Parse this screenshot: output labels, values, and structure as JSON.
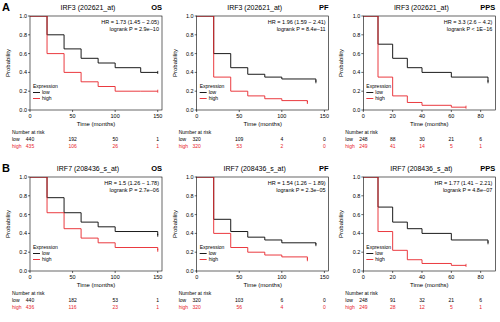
{
  "figure": {
    "panels": [
      "A",
      "B"
    ]
  },
  "chart_data": [
    {
      "type": "line",
      "title": "IRF3 (202621_at)",
      "subtitle": "OS",
      "annotations": [
        "HR = 1.73 (1.45 − 2.05)",
        "logrank P = 2.9e−10"
      ],
      "x_label": "Time (months)",
      "y_label": "Probability",
      "legend_title": "Expression",
      "legend": "bottom-left",
      "line_style": "step",
      "xlim": [
        0,
        155
      ],
      "xticks": [
        0,
        50,
        100,
        150
      ],
      "ylim": [
        0,
        1
      ],
      "yticks": [
        {
          "value": 0,
          "label": "0.0"
        },
        0.2,
        0.4,
        0.6,
        0.8,
        {
          "value": 1,
          "label": "1.0"
        }
      ],
      "series": [
        {
          "name": "low",
          "color": "#000000",
          "x": [
            0,
            20,
            40,
            60,
            80,
            100,
            130,
            150
          ],
          "values": [
            1,
            0.8,
            0.65,
            0.55,
            0.5,
            0.45,
            0.4,
            0.4
          ]
        },
        {
          "name": "high",
          "color": "#e8242a",
          "x": [
            0,
            20,
            40,
            60,
            80,
            100,
            130,
            150
          ],
          "values": [
            1,
            0.6,
            0.4,
            0.3,
            0.25,
            0.2,
            0.2,
            0.2
          ]
        }
      ],
      "risk_table": {
        "title": "Number at risk",
        "rows": [
          {
            "name": "low",
            "values": [
              440,
              192,
              50,
              1
            ]
          },
          {
            "name": "high",
            "values": [
              435,
              106,
              26,
              1
            ]
          }
        ]
      }
    },
    {
      "type": "line",
      "title": "IRF3 (202621_at)",
      "subtitle": "PF",
      "annotations": [
        "HR = 1.96 (1.59 − 2.41)",
        "logrank P = 8.4e−11"
      ],
      "x_label": "Time (months)",
      "y_label": "Probability",
      "legend_title": "Expression",
      "legend": "bottom-left",
      "line_style": "step",
      "xlim": [
        0,
        155
      ],
      "xticks": [
        0,
        50,
        100,
        150
      ],
      "ylim": [
        0,
        1
      ],
      "yticks": [
        {
          "value": 0,
          "label": "0.0"
        },
        0.2,
        0.4,
        0.6,
        0.8,
        {
          "value": 1,
          "label": "1.0"
        }
      ],
      "series": [
        {
          "name": "low",
          "color": "#000000",
          "x": [
            0,
            20,
            40,
            60,
            80,
            100,
            140
          ],
          "values": [
            1,
            0.6,
            0.45,
            0.38,
            0.35,
            0.33,
            0.3
          ]
        },
        {
          "name": "high",
          "color": "#e8242a",
          "x": [
            0,
            20,
            40,
            60,
            80,
            100,
            130
          ],
          "values": [
            1,
            0.35,
            0.2,
            0.15,
            0.12,
            0.1,
            0.08
          ]
        }
      ],
      "risk_table": {
        "title": "Number at risk",
        "rows": [
          {
            "name": "low",
            "values": [
              320,
              109,
              4,
              0
            ]
          },
          {
            "name": "high",
            "values": [
              320,
              53,
              2,
              0
            ]
          }
        ]
      }
    },
    {
      "type": "line",
      "title": "IRF3 (202621_at)",
      "subtitle": "PPS",
      "annotations": [
        "HR = 3.3 (2.6 − 4.2)",
        "logrank P < 1E−16"
      ],
      "x_label": "Time (months)",
      "y_label": "Probability",
      "legend_title": "Expression",
      "legend": "bottom-left",
      "line_style": "step",
      "xlim": [
        0,
        90
      ],
      "xticks": [
        0,
        20,
        40,
        60,
        80
      ],
      "ylim": [
        0,
        1
      ],
      "yticks": [
        {
          "value": 0,
          "label": "0.0"
        },
        0.2,
        0.4,
        0.6,
        0.8,
        {
          "value": 1,
          "label": "1.0"
        }
      ],
      "series": [
        {
          "name": "low",
          "color": "#000000",
          "x": [
            0,
            10,
            20,
            30,
            40,
            60,
            85
          ],
          "values": [
            1,
            0.7,
            0.55,
            0.45,
            0.4,
            0.35,
            0.3
          ]
        },
        {
          "name": "high",
          "color": "#e8242a",
          "x": [
            0,
            10,
            20,
            30,
            40,
            60,
            70
          ],
          "values": [
            1,
            0.35,
            0.15,
            0.08,
            0.05,
            0.03,
            0.03
          ]
        }
      ],
      "risk_table": {
        "title": "Number at risk",
        "rows": [
          {
            "name": "low",
            "values": [
              248,
              88,
              30,
              21,
              6
            ]
          },
          {
            "name": "high",
            "values": [
              249,
              41,
              14,
              5,
              1
            ]
          }
        ]
      }
    },
    {
      "type": "line",
      "title": "IRF7 (208436_s_at)",
      "subtitle": "OS",
      "annotations": [
        "HR = 1.5 (1.26 − 1.78)",
        "logrank P = 2.7e−06"
      ],
      "x_label": "Time (months)",
      "y_label": "Probability",
      "legend_title": "Expression",
      "legend": "bottom-left",
      "line_style": "step",
      "xlim": [
        0,
        155
      ],
      "xticks": [
        0,
        50,
        100,
        150
      ],
      "ylim": [
        0,
        1
      ],
      "yticks": [
        {
          "value": 0,
          "label": "0.0"
        },
        0.2,
        0.4,
        0.6,
        0.8,
        {
          "value": 1,
          "label": "1.0"
        }
      ],
      "series": [
        {
          "name": "low",
          "color": "#000000",
          "x": [
            0,
            20,
            40,
            60,
            80,
            100,
            150
          ],
          "values": [
            1,
            0.78,
            0.62,
            0.52,
            0.47,
            0.42,
            0.38
          ]
        },
        {
          "name": "high",
          "color": "#e8242a",
          "x": [
            0,
            20,
            40,
            60,
            80,
            100,
            150
          ],
          "values": [
            1,
            0.62,
            0.45,
            0.35,
            0.3,
            0.25,
            0.22
          ]
        }
      ],
      "risk_table": {
        "title": "Number at risk",
        "rows": [
          {
            "name": "low",
            "values": [
              440,
              182,
              53,
              1
            ]
          },
          {
            "name": "high",
            "values": [
              436,
              116,
              23,
              1
            ]
          }
        ]
      }
    },
    {
      "type": "line",
      "title": "IRF7 (208436_s_at)",
      "subtitle": "PF",
      "annotations": [
        "HR = 1.54 (1.26 − 1.89)",
        "logrank P = 2.3e−05"
      ],
      "x_label": "Time (months)",
      "y_label": "Probability",
      "legend_title": "Expression",
      "legend": "bottom-left",
      "line_style": "step",
      "xlim": [
        0,
        155
      ],
      "xticks": [
        0,
        50,
        100,
        150
      ],
      "ylim": [
        0,
        1
      ],
      "yticks": [
        {
          "value": 0,
          "label": "0.0"
        },
        0.2,
        0.4,
        0.6,
        0.8,
        {
          "value": 1,
          "label": "1.0"
        }
      ],
      "series": [
        {
          "name": "low",
          "color": "#000000",
          "x": [
            0,
            20,
            40,
            60,
            80,
            100,
            140
          ],
          "values": [
            1,
            0.55,
            0.42,
            0.36,
            0.33,
            0.3,
            0.28
          ]
        },
        {
          "name": "high",
          "color": "#e8242a",
          "x": [
            0,
            20,
            40,
            60,
            80,
            100,
            130
          ],
          "values": [
            1,
            0.4,
            0.25,
            0.2,
            0.17,
            0.15,
            0.12
          ]
        }
      ],
      "risk_table": {
        "title": "Number at risk",
        "rows": [
          {
            "name": "low",
            "values": [
              320,
              103,
              6,
              0
            ]
          },
          {
            "name": "high",
            "values": [
              320,
              56,
              4,
              0
            ]
          }
        ]
      }
    },
    {
      "type": "line",
      "title": "IRF7 (208436_s_at)",
      "subtitle": "PPS",
      "annotations": [
        "HR = 1.77 (1.41 − 2.21)",
        "logrank P = 4.8e−07"
      ],
      "x_label": "Time (months)",
      "y_label": "Probability",
      "legend_title": "Expression",
      "legend": "bottom-left",
      "line_style": "step",
      "xlim": [
        0,
        90
      ],
      "xticks": [
        0,
        20,
        40,
        60,
        80
      ],
      "ylim": [
        0,
        1
      ],
      "yticks": [
        {
          "value": 0,
          "label": "0.0"
        },
        0.2,
        0.4,
        0.6,
        0.8,
        {
          "value": 1,
          "label": "1.0"
        }
      ],
      "series": [
        {
          "name": "low",
          "color": "#000000",
          "x": [
            0,
            10,
            20,
            30,
            40,
            60,
            85
          ],
          "values": [
            1,
            0.68,
            0.52,
            0.45,
            0.4,
            0.33,
            0.3
          ]
        },
        {
          "name": "high",
          "color": "#e8242a",
          "x": [
            0,
            10,
            20,
            30,
            40,
            60,
            70
          ],
          "values": [
            1,
            0.42,
            0.22,
            0.12,
            0.08,
            0.06,
            0.06
          ]
        }
      ],
      "risk_table": {
        "title": "Number at risk",
        "rows": [
          {
            "name": "low",
            "values": [
              248,
              91,
              32,
              21,
              6
            ]
          },
          {
            "name": "high",
            "values": [
              249,
              28,
              12,
              5,
              1
            ]
          }
        ]
      }
    }
  ]
}
